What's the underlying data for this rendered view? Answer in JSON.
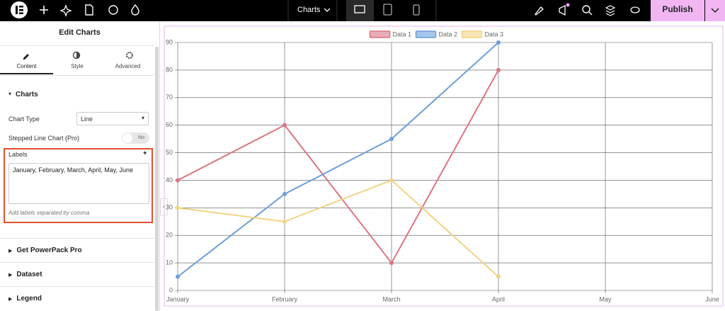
{
  "topbar": {
    "page_title": "Charts",
    "publish": "Publish"
  },
  "panel": {
    "title": "Edit Charts",
    "tabs": [
      "Content",
      "Style",
      "Advanced"
    ],
    "section": "Charts",
    "chart_type_label": "Chart Type",
    "chart_type_value": "Line",
    "stepped_label": "Stepped Line Chart (Pro)",
    "stepped_toggle": "No",
    "labels_label": "Labels",
    "labels_value": "January, February, March, April, May, June",
    "labels_hint": "Add labels separated by comma",
    "sections": [
      "Get PowerPack Pro",
      "Dataset",
      "Legend"
    ]
  },
  "chart_data": {
    "type": "line",
    "categories": [
      "January",
      "February",
      "March",
      "April",
      "May",
      "June"
    ],
    "series": [
      {
        "name": "Data 1",
        "color": "#dc7583",
        "values": [
          40,
          60,
          10,
          80,
          null,
          null
        ]
      },
      {
        "name": "Data 2",
        "color": "#6d9fd9",
        "values": [
          5,
          35,
          55,
          90,
          null,
          null
        ]
      },
      {
        "name": "Data 3",
        "color": "#f0d384",
        "values": [
          30,
          25,
          40,
          5,
          null,
          null
        ]
      }
    ],
    "ylim": [
      0,
      90
    ],
    "yticks": [
      0,
      10,
      20,
      30,
      40,
      50,
      60,
      70,
      80,
      90
    ],
    "grid": true,
    "legend": "top"
  }
}
